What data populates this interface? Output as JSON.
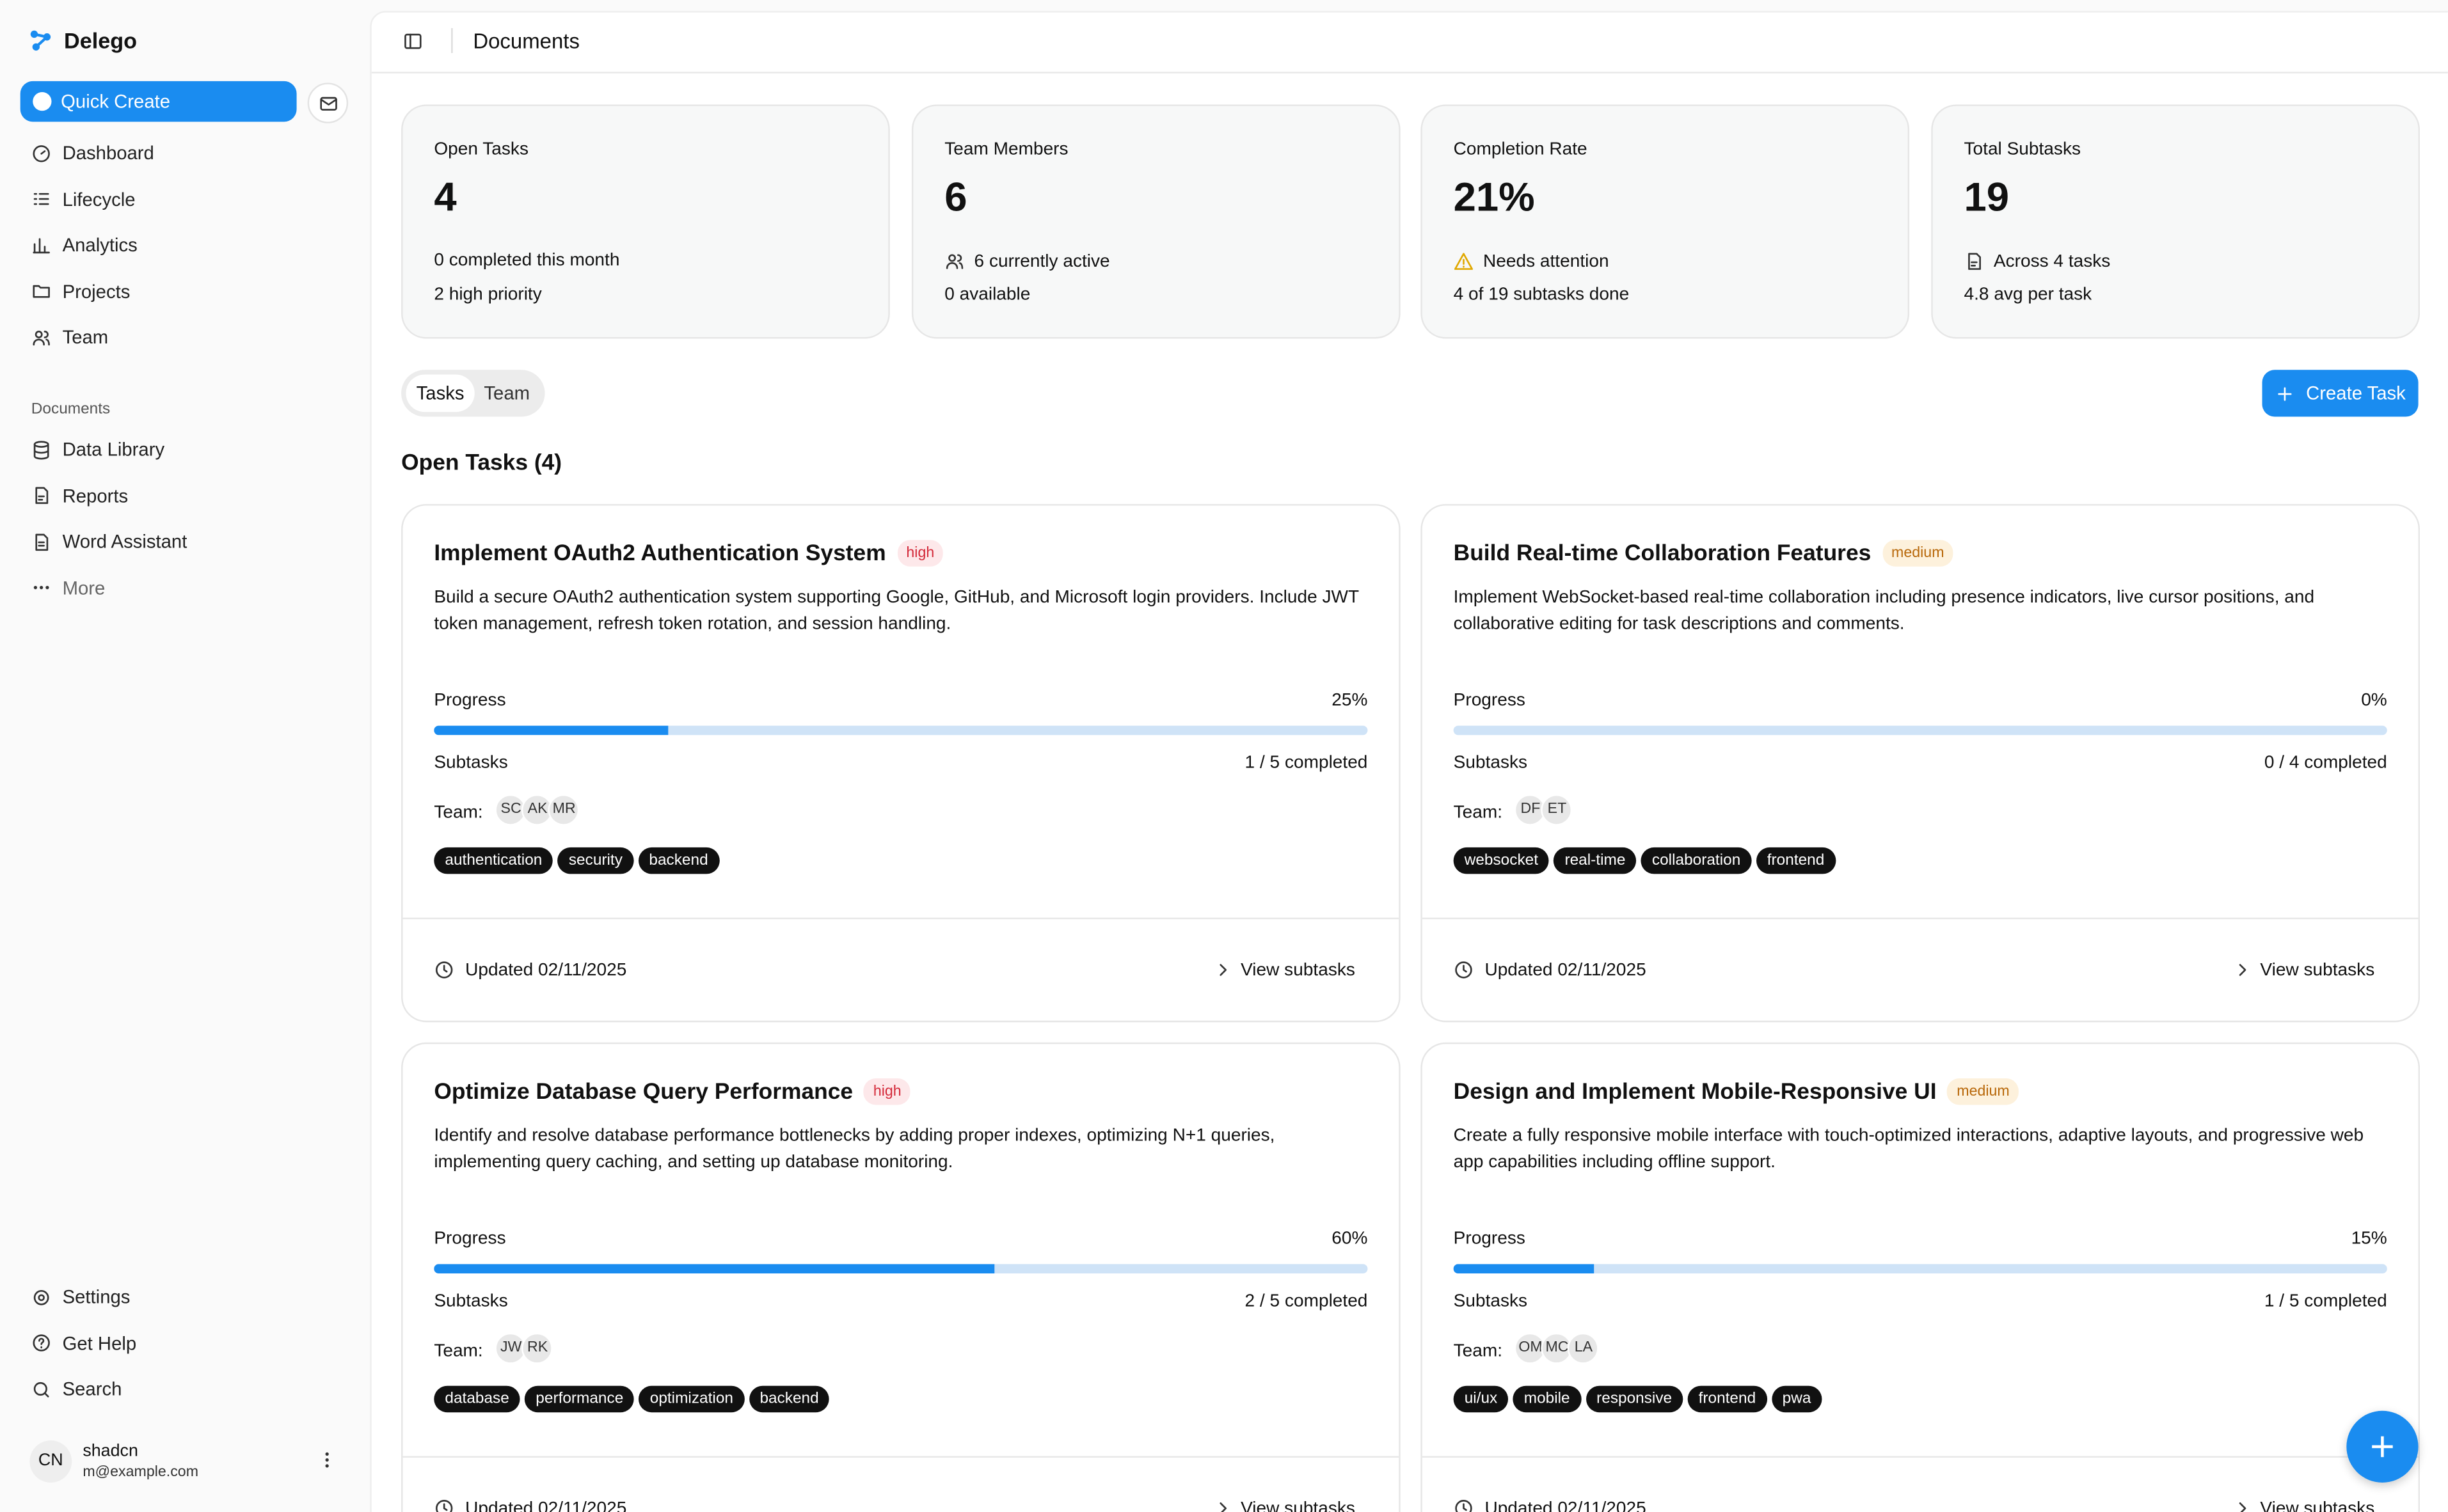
{
  "sidebar": {
    "brand": "Delego",
    "quick_create": "Quick Create",
    "nav": [
      "Dashboard",
      "Lifecycle",
      "Analytics",
      "Projects",
      "Team"
    ],
    "section": "Documents",
    "docs": [
      "Data Library",
      "Reports",
      "Word Assistant",
      "More"
    ],
    "footer_nav": [
      "Settings",
      "Get Help",
      "Search"
    ],
    "user": {
      "initials": "CN",
      "name": "shadcn",
      "email": "m@example.com"
    }
  },
  "header": {
    "title": "Documents"
  },
  "stats": [
    {
      "label": "Open Tasks",
      "value": "4",
      "line1": "0 completed this month",
      "line2": "2 high priority"
    },
    {
      "label": "Team Members",
      "value": "6",
      "line1": "6 currently active",
      "line2": "0 available"
    },
    {
      "label": "Completion Rate",
      "value": "21%",
      "line1": "Needs attention",
      "line2": "4 of 19 subtasks done"
    },
    {
      "label": "Total Subtasks",
      "value": "19",
      "line1": "Across 4 tasks",
      "line2": "4.8 avg per task"
    }
  ],
  "tabs": [
    "Tasks",
    "Team"
  ],
  "create_button": "Create Task",
  "section_title": "Open Tasks (4)",
  "task_labels": {
    "progress": "Progress",
    "subtasks": "Subtasks",
    "team": "Team:",
    "view": "View subtasks"
  },
  "tasks": [
    {
      "title": "Implement OAuth2 Authentication System",
      "priority": "high",
      "description": "Build a secure OAuth2 authentication system supporting Google, GitHub, and Microsoft login providers. Include JWT token management, refresh token rotation, and session handling.",
      "progress": {
        "value": 25,
        "label": "25%"
      },
      "subtasks": "1 / 5 completed",
      "team": [
        "SC",
        "AK",
        "MR"
      ],
      "tags": [
        "authentication",
        "security",
        "backend"
      ],
      "updated": "Updated 02/11/2025"
    },
    {
      "title": "Build Real-time Collaboration Features",
      "priority": "medium",
      "description": "Implement WebSocket-based real-time collaboration including presence indicators, live cursor positions, and collaborative editing for task descriptions and comments.",
      "progress": {
        "value": 0,
        "label": "0%"
      },
      "subtasks": "0 / 4 completed",
      "team": [
        "DF",
        "ET"
      ],
      "tags": [
        "websocket",
        "real-time",
        "collaboration",
        "frontend"
      ],
      "updated": "Updated 02/11/2025"
    },
    {
      "title": "Optimize Database Query Performance",
      "priority": "high",
      "description": "Identify and resolve database performance bottlenecks by adding proper indexes, optimizing N+1 queries, implementing query caching, and setting up database monitoring.",
      "progress": {
        "value": 60,
        "label": "60%"
      },
      "subtasks": "2 / 5 completed",
      "team": [
        "JW",
        "RK"
      ],
      "tags": [
        "database",
        "performance",
        "optimization",
        "backend"
      ],
      "updated": "Updated 02/11/2025"
    },
    {
      "title": "Design and Implement Mobile-Responsive UI",
      "priority": "medium",
      "description": "Create a fully responsive mobile interface with touch-optimized interactions, adaptive layouts, and progressive web app capabilities including offline support.",
      "progress": {
        "value": 15,
        "label": "15%"
      },
      "subtasks": "1 / 5 completed",
      "team": [
        "OM",
        "MC",
        "LA"
      ],
      "tags": [
        "ui/ux",
        "mobile",
        "responsive",
        "frontend",
        "pwa"
      ],
      "updated": "Updated 02/11/2025"
    }
  ]
}
